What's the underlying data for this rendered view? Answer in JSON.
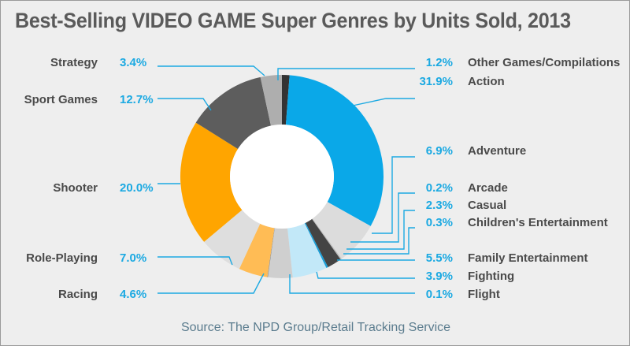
{
  "chart_data": {
    "type": "pie",
    "variant": "donut",
    "title": "Best-Selling VIDEO GAME Super Genres by Units Sold, 2013",
    "source": "Source: The NPD Group/Retail Tracking Service",
    "unit": "%",
    "slices": [
      {
        "label": "Other Games/Compilations",
        "value": 1.2,
        "value_label": "1.2%",
        "color": "#333333"
      },
      {
        "label": "Action",
        "value": 31.9,
        "value_label": "31.9%",
        "color": "#0aa8e8"
      },
      {
        "label": "Adventure",
        "value": 6.9,
        "value_label": "6.9%",
        "color": "#dcdcdc"
      },
      {
        "label": "Arcade",
        "value": 0.2,
        "value_label": "0.2%",
        "color": "#bdbdbd"
      },
      {
        "label": "Casual",
        "value": 2.3,
        "value_label": "2.3%",
        "color": "#444444"
      },
      {
        "label": "Children's Entertainment",
        "value": 0.3,
        "value_label": "0.3%",
        "color": "#1a9fd8"
      },
      {
        "label": "Family Entertainment",
        "value": 5.5,
        "value_label": "5.5%",
        "color": "#c2e8f8"
      },
      {
        "label": "Fighting",
        "value": 3.9,
        "value_label": "3.9%",
        "color": "#cfcfcf"
      },
      {
        "label": "Flight",
        "value": 0.1,
        "value_label": "0.1%",
        "color": "#909090"
      },
      {
        "label": "Racing",
        "value": 4.6,
        "value_label": "4.6%",
        "color": "#ffbc55"
      },
      {
        "label": "Role-Playing",
        "value": 7.0,
        "value_label": "7.0%",
        "color": "#dedede"
      },
      {
        "label": "Shooter",
        "value": 20.0,
        "value_label": "20.0%",
        "color": "#ffa500"
      },
      {
        "label": "Sport Games",
        "value": 12.7,
        "value_label": "12.7%",
        "color": "#5d5d5d"
      },
      {
        "label": "Strategy",
        "value": 3.4,
        "value_label": "3.4%",
        "color": "#aeaeae"
      }
    ],
    "legend": "callout labels beside slices"
  }
}
